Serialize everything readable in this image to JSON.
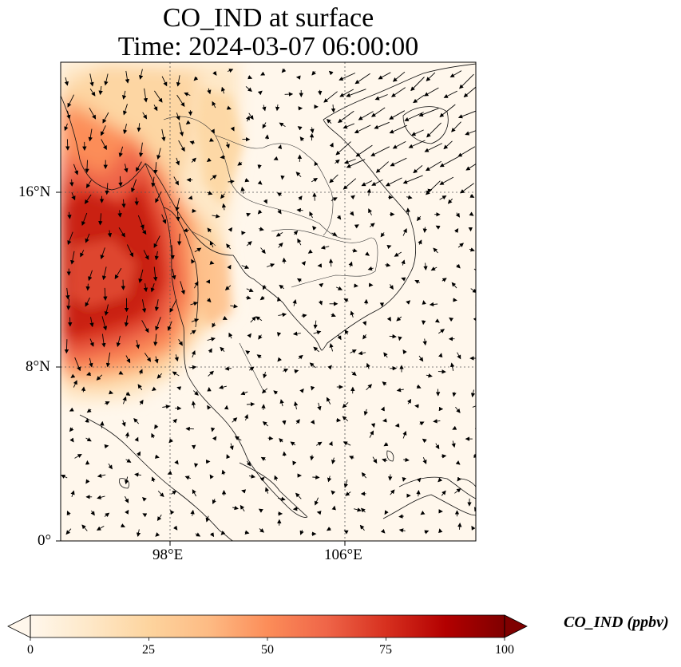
{
  "title_line1": "CO_IND at surface",
  "title_line2": "Time: 2024-03-07 06:00:00",
  "axes": {
    "lon_ticks": [
      "98°E",
      "106°E"
    ],
    "lat_ticks": [
      "16°N",
      "8°N",
      "0°"
    ]
  },
  "colorbar": {
    "label": "CO_IND (ppbv)",
    "ticks": [
      "0",
      "25",
      "50",
      "75",
      "100"
    ],
    "colormap": "OrRd",
    "extend": "both",
    "min": 0,
    "max": 100
  },
  "map": {
    "gridlines": "dotted",
    "lon_range_deg": [
      93,
      112
    ],
    "lat_range_deg": [
      0,
      22
    ],
    "plume_region": "Myanmar coast / Andaman Sea, highest concentrations",
    "background_color": "#fff7ec"
  }
}
